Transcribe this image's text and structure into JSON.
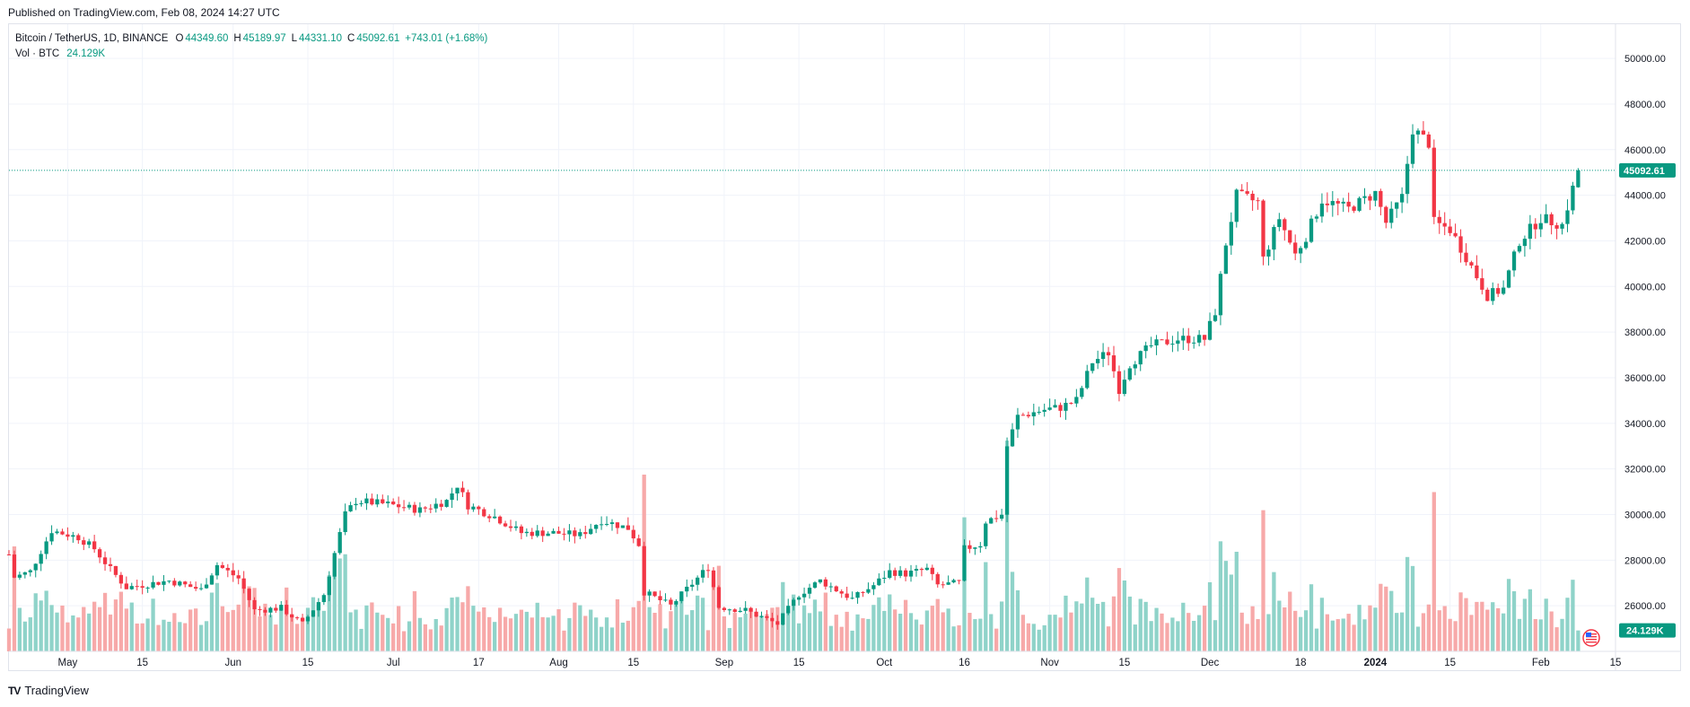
{
  "header": {
    "published": "Published on TradingView.com, Feb 08, 2024 14:27 UTC"
  },
  "legend": {
    "symbol": "Bitcoin / TetherUS, 1D, BINANCE",
    "o_label": "O",
    "o_value": "44349.60",
    "h_label": "H",
    "h_value": "45189.97",
    "l_label": "L",
    "l_value": "44331.10",
    "c_label": "C",
    "c_value": "45092.61",
    "change": "+743.01 (+1.68%)",
    "vol_label": "Vol · BTC",
    "vol_value": "24.129K"
  },
  "footer": {
    "brand": "TradingView",
    "logo": "TV"
  },
  "colors": {
    "up": "#089981",
    "down": "#f23645",
    "vol_up": "#8fd3c9",
    "vol_down": "#f7a9a9",
    "grid": "#f0f3fa",
    "price_line": "#089981"
  },
  "price_tag": "45092.61",
  "volume_tag": "24.129K",
  "flag_icon": "us-flag-icon",
  "chart_data": {
    "type": "candlestick",
    "symbol": "BTCUSDT",
    "interval": "1D",
    "price_axis_ticks": [
      "26000.00",
      "28000.00",
      "30000.00",
      "32000.00",
      "34000.00",
      "36000.00",
      "38000.00",
      "40000.00",
      "42000.00",
      "44000.00",
      "46000.00",
      "48000.00",
      "50000.00"
    ],
    "price_range": [
      24000,
      51500
    ],
    "volume_range": [
      0,
      120000
    ],
    "time_axis_labels": [
      {
        "label": "May",
        "date": "2023-05-01"
      },
      {
        "label": "15",
        "date": "2023-05-15"
      },
      {
        "label": "Jun",
        "date": "2023-06-01"
      },
      {
        "label": "15",
        "date": "2023-06-15"
      },
      {
        "label": "Jul",
        "date": "2023-07-01"
      },
      {
        "label": "17",
        "date": "2023-07-17"
      },
      {
        "label": "Aug",
        "date": "2023-08-01"
      },
      {
        "label": "15",
        "date": "2023-08-15"
      },
      {
        "label": "Sep",
        "date": "2023-09-01"
      },
      {
        "label": "15",
        "date": "2023-09-15"
      },
      {
        "label": "Oct",
        "date": "2023-10-01"
      },
      {
        "label": "16",
        "date": "2023-10-16"
      },
      {
        "label": "Nov",
        "date": "2023-11-01"
      },
      {
        "label": "15",
        "date": "2023-11-15"
      },
      {
        "label": "Dec",
        "date": "2023-12-01"
      },
      {
        "label": "18",
        "date": "2023-12-18"
      },
      {
        "label": "2024",
        "date": "2024-01-01",
        "bold": true
      },
      {
        "label": "15",
        "date": "2024-01-15"
      },
      {
        "label": "Feb",
        "date": "2024-02-01"
      },
      {
        "label": "15",
        "date": "2024-02-15"
      }
    ],
    "date_range": [
      "2023-04-20",
      "2024-02-15"
    ],
    "close_keypoints": [
      [
        "2023-04-20",
        28250
      ],
      [
        "2023-04-21",
        27250
      ],
      [
        "2023-04-24",
        27500
      ],
      [
        "2023-04-26",
        28400
      ],
      [
        "2023-04-28",
        29300
      ],
      [
        "2023-05-03",
        29000
      ],
      [
        "2023-05-06",
        28500
      ],
      [
        "2023-05-09",
        27600
      ],
      [
        "2023-05-12",
        26800
      ],
      [
        "2023-05-20",
        27100
      ],
      [
        "2023-05-26",
        26700
      ],
      [
        "2023-05-29",
        27800
      ],
      [
        "2023-06-02",
        27200
      ],
      [
        "2023-06-05",
        25800
      ],
      [
        "2023-06-10",
        25900
      ],
      [
        "2023-06-14",
        25200
      ],
      [
        "2023-06-18",
        26500
      ],
      [
        "2023-06-20",
        28300
      ],
      [
        "2023-06-22",
        30000
      ],
      [
        "2023-06-24",
        30600
      ],
      [
        "2023-06-30",
        30450
      ],
      [
        "2023-07-06",
        30200
      ],
      [
        "2023-07-11",
        30600
      ],
      [
        "2023-07-13",
        31300
      ],
      [
        "2023-07-15",
        30400
      ],
      [
        "2023-07-20",
        29900
      ],
      [
        "2023-07-25",
        29200
      ],
      [
        "2023-07-31",
        29200
      ],
      [
        "2023-08-05",
        29100
      ],
      [
        "2023-08-09",
        29750
      ],
      [
        "2023-08-14",
        29400
      ],
      [
        "2023-08-16",
        28700
      ],
      [
        "2023-08-17",
        26600
      ],
      [
        "2023-08-22",
        26000
      ],
      [
        "2023-08-29",
        27700
      ],
      [
        "2023-08-31",
        25950
      ],
      [
        "2023-09-05",
        25800
      ],
      [
        "2023-09-11",
        25200
      ],
      [
        "2023-09-15",
        26500
      ],
      [
        "2023-09-19",
        27100
      ],
      [
        "2023-09-25",
        26300
      ],
      [
        "2023-09-29",
        26900
      ],
      [
        "2023-10-02",
        27500
      ],
      [
        "2023-10-05",
        27400
      ],
      [
        "2023-10-09",
        27600
      ],
      [
        "2023-10-11",
        26900
      ],
      [
        "2023-10-15",
        27000
      ],
      [
        "2023-10-16",
        28500
      ],
      [
        "2023-10-19",
        28700
      ],
      [
        "2023-10-20",
        29700
      ],
      [
        "2023-10-23",
        30000
      ],
      [
        "2023-10-24",
        33000
      ],
      [
        "2023-10-26",
        34300
      ],
      [
        "2023-10-31",
        34600
      ],
      [
        "2023-11-03",
        34700
      ],
      [
        "2023-11-06",
        35000
      ],
      [
        "2023-11-09",
        36700
      ],
      [
        "2023-11-12",
        37100
      ],
      [
        "2023-11-14",
        35500
      ],
      [
        "2023-11-16",
        36600
      ],
      [
        "2023-11-20",
        37400
      ],
      [
        "2023-11-25",
        37700
      ],
      [
        "2023-11-30",
        37700
      ],
      [
        "2023-12-02",
        38900
      ],
      [
        "2023-12-04",
        41900
      ],
      [
        "2023-12-06",
        44000
      ],
      [
        "2023-12-10",
        43700
      ],
      [
        "2023-12-11",
        41200
      ],
      [
        "2023-12-14",
        43000
      ],
      [
        "2023-12-17",
        41400
      ],
      [
        "2023-12-19",
        42200
      ],
      [
        "2023-12-22",
        43800
      ],
      [
        "2023-12-27",
        43400
      ],
      [
        "2024-01-01",
        44100
      ],
      [
        "2024-01-03",
        42800
      ],
      [
        "2024-01-06",
        43900
      ],
      [
        "2024-01-08",
        46900
      ],
      [
        "2024-01-11",
        46300
      ],
      [
        "2024-01-12",
        42800
      ],
      [
        "2024-01-15",
        42500
      ],
      [
        "2024-01-18",
        41300
      ],
      [
        "2024-01-22",
        39600
      ],
      [
        "2024-01-25",
        39900
      ],
      [
        "2024-01-28",
        42000
      ],
      [
        "2024-02-01",
        43000
      ],
      [
        "2024-02-05",
        42700
      ],
      [
        "2024-02-07",
        44300
      ],
      [
        "2024-02-08",
        45092
      ]
    ],
    "last_candle": {
      "date": "2024-02-08",
      "open": 44349.6,
      "high": 45189.97,
      "low": 44331.1,
      "close": 45092.61,
      "volume": 24129
    },
    "series": [
      {
        "name": "BTCUSDT",
        "kind": "ohlc"
      },
      {
        "name": "Vol · BTC",
        "kind": "volume"
      }
    ]
  }
}
